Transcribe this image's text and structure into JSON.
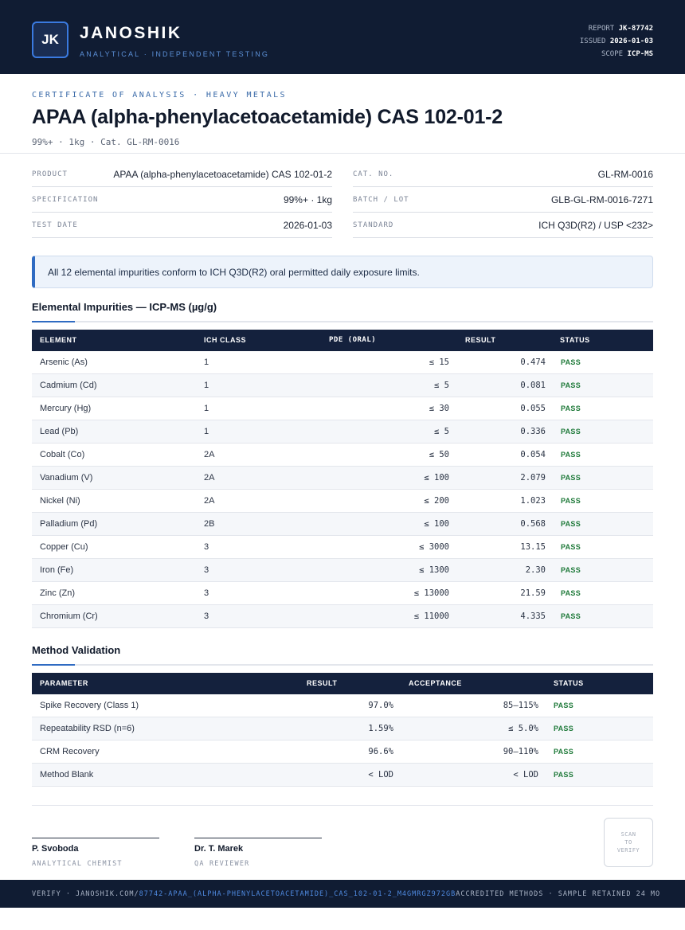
{
  "brand": {
    "logo": "JK",
    "name": "JANOSHIK",
    "tagline": "ANALYTICAL · INDEPENDENT TESTING"
  },
  "report_meta": {
    "report_label": "REPORT",
    "report_value": "JK-87742",
    "issued_label": "ISSUED",
    "issued_value": "2026-01-03",
    "scope_label": "SCOPE",
    "scope_value": "ICP-MS"
  },
  "header": {
    "eyebrow": "CERTIFICATE OF ANALYSIS · HEAVY METALS",
    "title": "APAA (alpha-phenylacetoacetamide) CAS 102-01-2",
    "subtitle": "99%+ · 1kg  ·  Cat. GL-RM-0016"
  },
  "info_left": [
    {
      "label": "PRODUCT",
      "value": "APAA (alpha-phenylacetoacetamide) CAS 102-01-2"
    },
    {
      "label": "SPECIFICATION",
      "value": "99%+ · 1kg"
    },
    {
      "label": "TEST DATE",
      "value": "2026-01-03"
    }
  ],
  "info_right": [
    {
      "label": "CAT. NO.",
      "value": "GL-RM-0016"
    },
    {
      "label": "BATCH / LOT",
      "value": "GLB-GL-RM-0016-7271"
    },
    {
      "label": "STANDARD",
      "value": "ICH Q3D(R2) / USP <232>"
    }
  ],
  "notice": "All 12 elemental impurities conform to ICH Q3D(R2) oral permitted daily exposure limits.",
  "impurities": {
    "title": "Elemental Impurities — ICP-MS (µg/g)",
    "headers": [
      "ELEMENT",
      "ICH CLASS",
      "PDE (ORAL)",
      "RESULT",
      "STATUS"
    ],
    "rows": [
      {
        "element": "Arsenic (As)",
        "class": "1",
        "pde": "≤ 15",
        "result": "0.474",
        "status": "PASS"
      },
      {
        "element": "Cadmium (Cd)",
        "class": "1",
        "pde": "≤ 5",
        "result": "0.081",
        "status": "PASS"
      },
      {
        "element": "Mercury (Hg)",
        "class": "1",
        "pde": "≤ 30",
        "result": "0.055",
        "status": "PASS"
      },
      {
        "element": "Lead (Pb)",
        "class": "1",
        "pde": "≤ 5",
        "result": "0.336",
        "status": "PASS"
      },
      {
        "element": "Cobalt (Co)",
        "class": "2A",
        "pde": "≤ 50",
        "result": "0.054",
        "status": "PASS"
      },
      {
        "element": "Vanadium (V)",
        "class": "2A",
        "pde": "≤ 100",
        "result": "2.079",
        "status": "PASS"
      },
      {
        "element": "Nickel (Ni)",
        "class": "2A",
        "pde": "≤ 200",
        "result": "1.023",
        "status": "PASS"
      },
      {
        "element": "Palladium (Pd)",
        "class": "2B",
        "pde": "≤ 100",
        "result": "0.568",
        "status": "PASS"
      },
      {
        "element": "Copper (Cu)",
        "class": "3",
        "pde": "≤ 3000",
        "result": "13.15",
        "status": "PASS"
      },
      {
        "element": "Iron (Fe)",
        "class": "3",
        "pde": "≤ 1300",
        "result": "2.30",
        "status": "PASS"
      },
      {
        "element": "Zinc (Zn)",
        "class": "3",
        "pde": "≤ 13000",
        "result": "21.59",
        "status": "PASS"
      },
      {
        "element": "Chromium (Cr)",
        "class": "3",
        "pde": "≤ 11000",
        "result": "4.335",
        "status": "PASS"
      }
    ]
  },
  "validation": {
    "title": "Method Validation",
    "headers": [
      "PARAMETER",
      "RESULT",
      "ACCEPTANCE",
      "STATUS"
    ],
    "rows": [
      {
        "parameter": "Spike Recovery (Class 1)",
        "result": "97.0%",
        "acceptance": "85–115%",
        "status": "PASS"
      },
      {
        "parameter": "Repeatability RSD (n=6)",
        "result": "1.59%",
        "acceptance": "≤ 5.0%",
        "status": "PASS"
      },
      {
        "parameter": "CRM Recovery",
        "result": "96.6%",
        "acceptance": "90–110%",
        "status": "PASS"
      },
      {
        "parameter": "Method Blank",
        "result": "< LOD",
        "acceptance": "< LOD",
        "status": "PASS"
      }
    ]
  },
  "signatures": [
    {
      "name": "P. Svoboda",
      "role": "ANALYTICAL CHEMIST"
    },
    {
      "name": "Dr. T. Marek",
      "role": "QA REVIEWER"
    }
  ],
  "qr": {
    "line1": "SCAN",
    "line2": "TO",
    "line3": "VERIFY"
  },
  "footer": {
    "verify_prefix": "VERIFY · JANOSHIK.COM/",
    "verify_path": "87742-APAA_(ALPHA-PHENYLACETOACETAMIDE)_CAS_102-01-2_M4GMRGZ972GB",
    "right": "ACCREDITED METHODS · SAMPLE RETAINED 24 MO"
  },
  "colors": {
    "navy": "#101c33",
    "accent": "#2f6bc2",
    "pass": "#1f7a3a"
  }
}
